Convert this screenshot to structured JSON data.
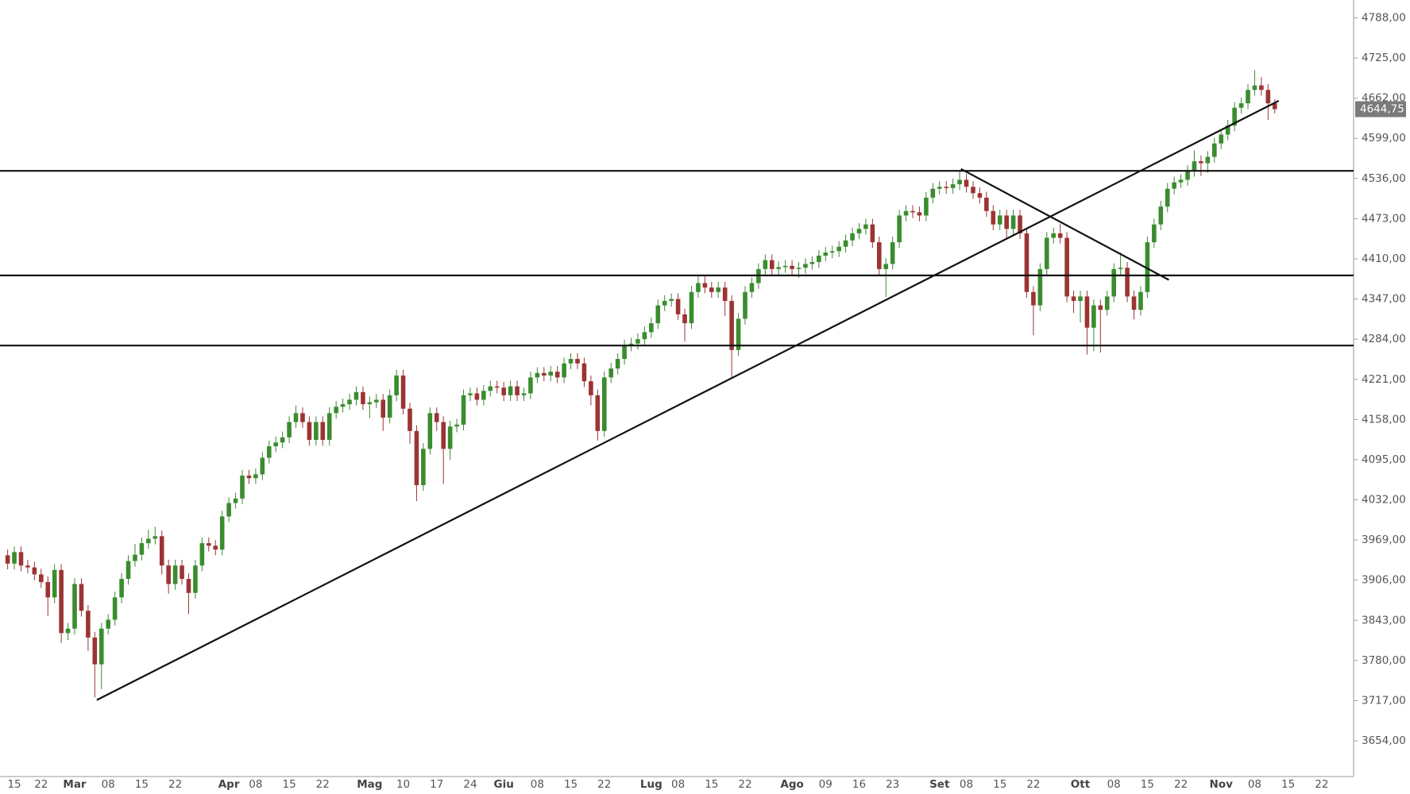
{
  "chart_data": {
    "type": "candlestick",
    "categories": [
      null,
      "15",
      null,
      null,
      null,
      "22",
      null,
      null,
      null,
      null,
      "Mar",
      null,
      null,
      null,
      null,
      "08",
      null,
      null,
      null,
      null,
      "15",
      null,
      null,
      null,
      null,
      "22",
      null,
      null,
      null,
      null,
      null,
      null,
      null,
      "Apr",
      null,
      null,
      null,
      "08",
      null,
      null,
      null,
      null,
      "15",
      null,
      null,
      null,
      null,
      "22",
      null,
      null,
      null,
      null,
      null,
      null,
      "Mag",
      null,
      null,
      null,
      null,
      "10",
      null,
      null,
      null,
      null,
      "17",
      null,
      null,
      null,
      null,
      "24",
      null,
      null,
      null,
      null,
      "Giu",
      null,
      null,
      null,
      null,
      "08",
      null,
      null,
      null,
      null,
      "15",
      null,
      null,
      null,
      null,
      "22",
      null,
      null,
      null,
      null,
      null,
      null,
      "Lug",
      null,
      null,
      null,
      "08",
      null,
      null,
      null,
      null,
      "15",
      null,
      null,
      null,
      null,
      "22",
      null,
      null,
      null,
      null,
      null,
      null,
      "Ago",
      null,
      null,
      null,
      null,
      "09",
      null,
      null,
      null,
      null,
      "16",
      null,
      null,
      null,
      null,
      "23",
      null,
      null,
      null,
      null,
      null,
      null,
      "Set",
      null,
      null,
      null,
      "08",
      null,
      null,
      null,
      null,
      "15",
      null,
      null,
      null,
      null,
      "22",
      null,
      null,
      null,
      null,
      null,
      null,
      "Ott",
      null,
      null,
      null,
      null,
      "08",
      null,
      null,
      null,
      null,
      "15",
      null,
      null,
      null,
      null,
      "22",
      null,
      null,
      null,
      null,
      null,
      "Nov",
      null,
      null,
      null,
      null,
      "08",
      null,
      null,
      null,
      null,
      "15",
      null,
      null,
      null,
      null,
      "22"
    ],
    "open": [
      3945,
      3932,
      3950,
      3929,
      3926,
      3915,
      3903,
      3879,
      3922,
      3823,
      3830,
      3900,
      3858,
      3816,
      3774,
      3830,
      3844,
      3879,
      3908,
      3936,
      3946,
      3964,
      3971,
      3975,
      3929,
      3900,
      3929,
      3908,
      3886,
      3929,
      3964,
      3960,
      3954,
      4006,
      4027,
      4034,
      4070,
      4066,
      4072,
      4098,
      4116,
      4122,
      4130,
      4154,
      4168,
      4154,
      4126,
      4154,
      4126,
      4168,
      4178,
      4182,
      4189,
      4201,
      4182,
      4185,
      4189,
      4161,
      4196,
      4227,
      4175,
      4140,
      4055,
      4112,
      4168,
      4154,
      4112,
      4147,
      4150,
      4196,
      4199,
      4189,
      4203,
      4210,
      4208,
      4196,
      4210,
      4196,
      4199,
      4224,
      4231,
      4227,
      4233,
      4224,
      4246,
      4253,
      4246,
      4218,
      4196,
      4140,
      4224,
      4238,
      4253,
      4274,
      4277,
      4284,
      4295,
      4309,
      4337,
      4344,
      4347,
      4323,
      4309,
      4358,
      4372,
      4365,
      4358,
      4365,
      4344,
      4267,
      4316,
      4358,
      4372,
      4394,
      4408,
      4394,
      4397,
      4399,
      4394,
      4396,
      4402,
      4405,
      4415,
      4420,
      4422,
      4429,
      4439,
      4450,
      4457,
      4464,
      4436,
      4394,
      4402,
      4436,
      4478,
      4485,
      4483,
      4478,
      4506,
      4520,
      4523,
      4521,
      4527,
      4534,
      4523,
      4513,
      4506,
      4485,
      4464,
      4478,
      4457,
      4478,
      4450,
      4358,
      4337,
      4394,
      4443,
      4450,
      4443,
      4351,
      4344,
      4351,
      4302,
      4337,
      4330,
      4351,
      4394,
      4396,
      4351,
      4330,
      4358,
      4436,
      4464,
      4492,
      4520,
      4530,
      4534,
      4548,
      4563,
      4560,
      4570,
      4591,
      4605,
      4619,
      4647,
      4654,
      4675,
      4682,
      4675,
      4654,
      null,
      null,
      null,
      null,
      null,
      null,
      null
    ],
    "high": [
      3954,
      3959,
      3959,
      3938,
      3935,
      3924,
      3912,
      3931,
      3931,
      3839,
      3909,
      3909,
      3867,
      3825,
      3839,
      3853,
      3888,
      3917,
      3945,
      3963,
      3973,
      3985,
      3990,
      3984,
      3938,
      3938,
      3938,
      3917,
      3938,
      3973,
      3973,
      3969,
      4015,
      4036,
      4043,
      4079,
      4079,
      4081,
      4107,
      4125,
      4131,
      4139,
      4163,
      4180,
      4177,
      4163,
      4163,
      4163,
      4177,
      4187,
      4191,
      4198,
      4210,
      4210,
      4194,
      4198,
      4198,
      4205,
      4236,
      4236,
      4184,
      4149,
      4121,
      4177,
      4177,
      4163,
      4156,
      4159,
      4205,
      4208,
      4208,
      4212,
      4219,
      4219,
      4217,
      4219,
      4219,
      4208,
      4233,
      4240,
      4240,
      4242,
      4242,
      4255,
      4262,
      4262,
      4255,
      4227,
      4205,
      4233,
      4247,
      4262,
      4283,
      4286,
      4293,
      4304,
      4318,
      4346,
      4353,
      4356,
      4356,
      4332,
      4367,
      4385,
      4385,
      4374,
      4374,
      4374,
      4353,
      4325,
      4367,
      4381,
      4403,
      4417,
      4417,
      4406,
      4408,
      4408,
      4405,
      4411,
      4414,
      4424,
      4429,
      4431,
      4438,
      4448,
      4459,
      4466,
      4473,
      4473,
      4445,
      4411,
      4445,
      4487,
      4494,
      4494,
      4492,
      4515,
      4529,
      4532,
      4532,
      4536,
      4548,
      4543,
      4532,
      4522,
      4515,
      4494,
      4487,
      4487,
      4487,
      4487,
      4459,
      4367,
      4403,
      4452,
      4459,
      4465,
      4452,
      4360,
      4360,
      4360,
      4346,
      4346,
      4360,
      4403,
      4420,
      4405,
      4360,
      4367,
      4445,
      4473,
      4501,
      4529,
      4539,
      4543,
      4557,
      4580,
      4572,
      4579,
      4600,
      4614,
      4628,
      4656,
      4663,
      4684,
      4706,
      4695,
      4684,
      4660,
      null,
      null,
      null,
      null,
      null,
      null,
      null
    ],
    "low": [
      3923,
      3923,
      3920,
      3917,
      3906,
      3894,
      3850,
      3870,
      3808,
      3812,
      3821,
      3849,
      3795,
      3722,
      3735,
      3821,
      3835,
      3870,
      3899,
      3927,
      3937,
      3955,
      3962,
      3915,
      3885,
      3891,
      3899,
      3853,
      3877,
      3920,
      3951,
      3945,
      3945,
      3997,
      4018,
      4025,
      4057,
      4057,
      4063,
      4089,
      4107,
      4113,
      4121,
      4145,
      4145,
      4117,
      4117,
      4117,
      4117,
      4159,
      4169,
      4173,
      4180,
      4173,
      4160,
      4176,
      4140,
      4152,
      4187,
      4166,
      4120,
      4030,
      4046,
      4103,
      4140,
      4057,
      4095,
      4138,
      4141,
      4187,
      4180,
      4180,
      4194,
      4199,
      4187,
      4187,
      4187,
      4187,
      4190,
      4215,
      4218,
      4218,
      4215,
      4215,
      4237,
      4237,
      4209,
      4180,
      4125,
      4131,
      4215,
      4229,
      4244,
      4265,
      4268,
      4275,
      4286,
      4300,
      4328,
      4335,
      4314,
      4280,
      4300,
      4349,
      4356,
      4349,
      4349,
      4320,
      4224,
      4258,
      4307,
      4349,
      4363,
      4385,
      4385,
      4385,
      4388,
      4385,
      4380,
      4387,
      4393,
      4396,
      4406,
      4411,
      4413,
      4420,
      4430,
      4441,
      4448,
      4427,
      4385,
      4350,
      4393,
      4427,
      4469,
      4474,
      4469,
      4469,
      4497,
      4511,
      4512,
      4512,
      4518,
      4514,
      4504,
      4497,
      4476,
      4455,
      4455,
      4440,
      4448,
      4441,
      4349,
      4290,
      4328,
      4385,
      4434,
      4434,
      4342,
      4325,
      4310,
      4260,
      4265,
      4263,
      4321,
      4342,
      4385,
      4342,
      4315,
      4321,
      4349,
      4427,
      4455,
      4483,
      4511,
      4521,
      4525,
      4539,
      4540,
      4545,
      4561,
      4582,
      4596,
      4610,
      4638,
      4645,
      4666,
      4666,
      4628,
      4638,
      null,
      null,
      null,
      null,
      null,
      null,
      null
    ],
    "close": [
      3932,
      3950,
      3929,
      3926,
      3915,
      3903,
      3879,
      3922,
      3823,
      3830,
      3900,
      3858,
      3816,
      3774,
      3830,
      3844,
      3879,
      3908,
      3936,
      3946,
      3964,
      3971,
      3975,
      3929,
      3900,
      3929,
      3908,
      3886,
      3929,
      3964,
      3960,
      3954,
      4006,
      4027,
      4034,
      4070,
      4066,
      4072,
      4098,
      4116,
      4122,
      4130,
      4154,
      4168,
      4154,
      4126,
      4154,
      4126,
      4168,
      4178,
      4182,
      4189,
      4201,
      4182,
      4185,
      4189,
      4161,
      4196,
      4227,
      4175,
      4140,
      4055,
      4112,
      4168,
      4154,
      4112,
      4147,
      4150,
      4196,
      4199,
      4189,
      4203,
      4210,
      4208,
      4196,
      4210,
      4196,
      4199,
      4224,
      4231,
      4227,
      4233,
      4224,
      4246,
      4253,
      4246,
      4218,
      4196,
      4140,
      4224,
      4238,
      4253,
      4274,
      4277,
      4284,
      4295,
      4309,
      4337,
      4344,
      4347,
      4323,
      4309,
      4358,
      4372,
      4365,
      4358,
      4365,
      4344,
      4267,
      4316,
      4358,
      4372,
      4394,
      4408,
      4394,
      4397,
      4399,
      4394,
      4396,
      4402,
      4405,
      4415,
      4420,
      4422,
      4429,
      4439,
      4450,
      4457,
      4464,
      4436,
      4394,
      4402,
      4436,
      4478,
      4485,
      4483,
      4478,
      4506,
      4520,
      4523,
      4521,
      4527,
      4534,
      4523,
      4513,
      4506,
      4485,
      4464,
      4478,
      4457,
      4478,
      4450,
      4358,
      4337,
      4394,
      4443,
      4450,
      4443,
      4351,
      4344,
      4351,
      4302,
      4337,
      4330,
      4351,
      4394,
      4396,
      4351,
      4330,
      4358,
      4436,
      4464,
      4492,
      4520,
      4530,
      4534,
      4548,
      4563,
      4560,
      4570,
      4591,
      4605,
      4619,
      4647,
      4654,
      4675,
      4682,
      4675,
      4654,
      4644.75,
      null,
      null,
      null,
      null,
      null,
      null,
      null
    ],
    "up_color": "#3a8c2f",
    "down_color": "#9b3434",
    "ylim": [
      3598,
      4816
    ],
    "yticks": [
      {
        "value": 4788,
        "label": "4788,00"
      },
      {
        "value": 4725,
        "label": "4725,00"
      },
      {
        "value": 4662,
        "label": "4662,00"
      },
      {
        "value": 4599,
        "label": "4599,00"
      },
      {
        "value": 4536,
        "label": "4536,00"
      },
      {
        "value": 4473,
        "label": "4473,00"
      },
      {
        "value": 4410,
        "label": "4410,00"
      },
      {
        "value": 4347,
        "label": "4347,00"
      },
      {
        "value": 4284,
        "label": "4284,00"
      },
      {
        "value": 4221,
        "label": "4221,00"
      },
      {
        "value": 4158,
        "label": "4158,00"
      },
      {
        "value": 4095,
        "label": "4095,00"
      },
      {
        "value": 4032,
        "label": "4032,00"
      },
      {
        "value": 3969,
        "label": "3969,00"
      },
      {
        "value": 3906,
        "label": "3906,00"
      },
      {
        "value": 3843,
        "label": "3843,00"
      },
      {
        "value": 3780,
        "label": "3780,00"
      },
      {
        "value": 3717,
        "label": "3717,00"
      },
      {
        "value": 3654,
        "label": "3654,00"
      }
    ],
    "last_price": {
      "value": 4644.75,
      "label": "4644,75"
    },
    "horizontal_lines": [
      4548,
      4384,
      4274
    ],
    "trend_lines": [
      {
        "x": [
          13.3,
          189.6
        ],
        "y": [
          3718,
          4658
        ]
      },
      {
        "x": [
          142.2,
          173.2
        ],
        "y": [
          4551,
          4377
        ]
      }
    ],
    "grid": false
  }
}
